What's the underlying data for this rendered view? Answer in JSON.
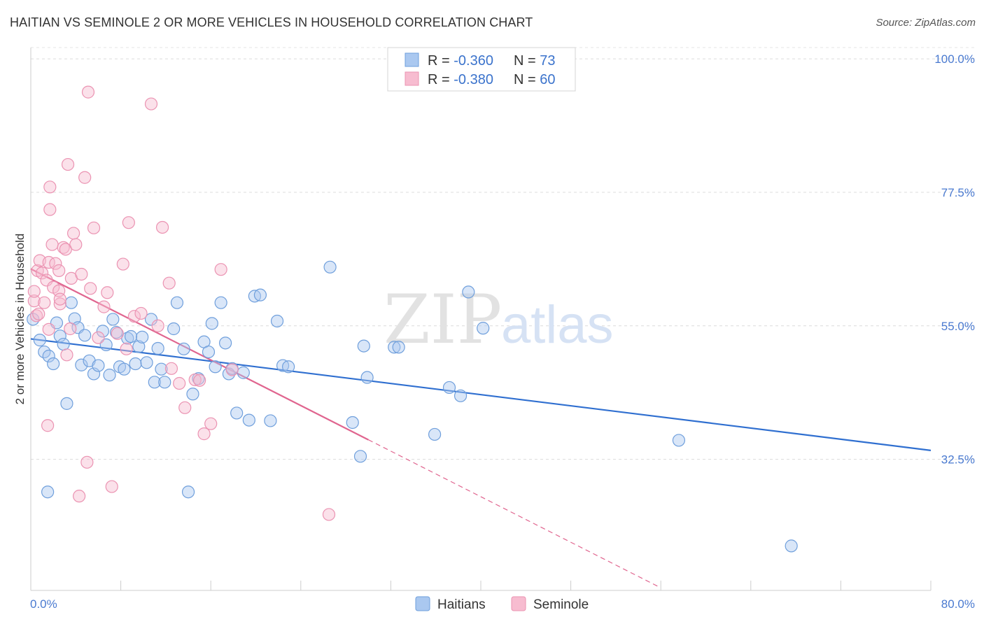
{
  "chart_data": {
    "type": "scatter",
    "title": "HAITIAN VS SEMINOLE 2 OR MORE VEHICLES IN HOUSEHOLD CORRELATION CHART",
    "source": "Source: ZipAtlas.com",
    "ylabel": "2 or more Vehicles in Household",
    "xlabel": "",
    "x_tick_labels": [
      "0.0%",
      "80.0%"
    ],
    "y_tick_labels": [
      "100.0%",
      "77.5%",
      "55.0%",
      "32.5%"
    ],
    "y_ticks": [
      100.0,
      77.5,
      55.0,
      32.5
    ],
    "xlim": [
      0,
      80
    ],
    "ylim": [
      10.4,
      101.9
    ],
    "watermark": {
      "zip": "ZIP",
      "atlas": "atlas"
    },
    "legend": [
      {
        "label": "R = ",
        "r": "-0.360",
        "n_label": "N = ",
        "n": "73"
      },
      {
        "label": "R = ",
        "r": "-0.380",
        "n_label": "N = ",
        "n": "60"
      }
    ],
    "series": [
      {
        "name": "Haitians",
        "color": "#aac8f0",
        "stroke": "#6f9fdc",
        "line_color": "#2f6fd0",
        "trend": {
          "x0": 0,
          "y0": 52.8,
          "x1": 80,
          "y1": 34.0
        },
        "points": [
          [
            0.2,
            56.1
          ],
          [
            0.8,
            52.6
          ],
          [
            1.2,
            50.6
          ],
          [
            1.6,
            49.9
          ],
          [
            2.0,
            48.6
          ],
          [
            2.3,
            55.5
          ],
          [
            2.6,
            53.3
          ],
          [
            2.9,
            51.9
          ],
          [
            3.2,
            41.9
          ],
          [
            3.6,
            58.9
          ],
          [
            3.9,
            56.2
          ],
          [
            4.2,
            54.7
          ],
          [
            4.5,
            48.4
          ],
          [
            4.8,
            53.4
          ],
          [
            5.2,
            49.1
          ],
          [
            5.6,
            46.9
          ],
          [
            6.0,
            48.3
          ],
          [
            6.4,
            54.1
          ],
          [
            6.7,
            51.8
          ],
          [
            7.0,
            46.7
          ],
          [
            7.3,
            56.1
          ],
          [
            7.6,
            53.9
          ],
          [
            7.9,
            48.1
          ],
          [
            8.3,
            47.7
          ],
          [
            8.6,
            52.9
          ],
          [
            8.9,
            53.2
          ],
          [
            9.3,
            48.6
          ],
          [
            9.6,
            51.5
          ],
          [
            9.9,
            53.1
          ],
          [
            10.3,
            48.8
          ],
          [
            10.7,
            56.1
          ],
          [
            11.0,
            45.5
          ],
          [
            11.3,
            51.2
          ],
          [
            11.6,
            47.7
          ],
          [
            11.9,
            45.5
          ],
          [
            12.7,
            54.5
          ],
          [
            13.0,
            58.9
          ],
          [
            13.6,
            51.1
          ],
          [
            14.0,
            27.0
          ],
          [
            14.4,
            43.5
          ],
          [
            14.9,
            46.1
          ],
          [
            15.4,
            52.3
          ],
          [
            15.8,
            50.6
          ],
          [
            16.1,
            55.4
          ],
          [
            16.4,
            48.1
          ],
          [
            16.9,
            58.9
          ],
          [
            17.3,
            52.1
          ],
          [
            17.6,
            46.9
          ],
          [
            17.9,
            47.8
          ],
          [
            18.3,
            40.3
          ],
          [
            18.9,
            47.1
          ],
          [
            19.4,
            39.1
          ],
          [
            19.9,
            60.0
          ],
          [
            20.4,
            60.2
          ],
          [
            21.3,
            39.0
          ],
          [
            21.9,
            55.8
          ],
          [
            22.4,
            48.3
          ],
          [
            22.9,
            48.1
          ],
          [
            26.6,
            64.9
          ],
          [
            28.6,
            38.7
          ],
          [
            29.3,
            33.0
          ],
          [
            29.6,
            51.6
          ],
          [
            29.9,
            46.3
          ],
          [
            32.3,
            51.4
          ],
          [
            32.7,
            51.4
          ],
          [
            35.9,
            36.7
          ],
          [
            37.2,
            44.6
          ],
          [
            38.2,
            43.2
          ],
          [
            38.9,
            60.7
          ],
          [
            40.2,
            54.6
          ],
          [
            57.6,
            35.7
          ],
          [
            67.6,
            17.9
          ],
          [
            1.5,
            27.0
          ]
        ]
      },
      {
        "name": "Seminole",
        "color": "#f7bcd0",
        "stroke": "#eb93b2",
        "line_color": "#e0658f",
        "trend": {
          "x0": 0,
          "y0": 64.6,
          "x1": 30.0,
          "y1": 35.8
        },
        "trend_dashed": {
          "x0": 30.0,
          "y0": 35.8,
          "x1": 80,
          "y1": -12.2
        },
        "points": [
          [
            0.3,
            59.2
          ],
          [
            0.3,
            60.8
          ],
          [
            0.5,
            56.7
          ],
          [
            0.6,
            64.3
          ],
          [
            0.7,
            57.0
          ],
          [
            0.8,
            66.0
          ],
          [
            1.0,
            63.9
          ],
          [
            1.2,
            58.9
          ],
          [
            1.4,
            62.7
          ],
          [
            1.5,
            38.2
          ],
          [
            1.6,
            65.7
          ],
          [
            1.6,
            54.4
          ],
          [
            1.7,
            78.4
          ],
          [
            1.7,
            74.6
          ],
          [
            1.9,
            68.7
          ],
          [
            2.0,
            61.5
          ],
          [
            2.2,
            65.5
          ],
          [
            2.5,
            60.9
          ],
          [
            2.5,
            64.3
          ],
          [
            2.6,
            58.7
          ],
          [
            2.6,
            59.5
          ],
          [
            2.9,
            68.2
          ],
          [
            3.1,
            67.9
          ],
          [
            3.2,
            50.1
          ],
          [
            3.3,
            82.2
          ],
          [
            3.5,
            54.5
          ],
          [
            3.6,
            63.0
          ],
          [
            3.8,
            70.6
          ],
          [
            4.0,
            68.7
          ],
          [
            4.3,
            26.3
          ],
          [
            4.5,
            63.7
          ],
          [
            4.8,
            80.0
          ],
          [
            5.0,
            32.0
          ],
          [
            5.3,
            61.3
          ],
          [
            5.6,
            71.5
          ],
          [
            6.0,
            53.0
          ],
          [
            6.5,
            58.2
          ],
          [
            6.8,
            60.6
          ],
          [
            7.2,
            27.9
          ],
          [
            7.7,
            53.7
          ],
          [
            8.2,
            65.4
          ],
          [
            8.5,
            51.1
          ],
          [
            8.7,
            72.4
          ],
          [
            9.2,
            56.6
          ],
          [
            9.8,
            57.1
          ],
          [
            10.7,
            92.4
          ],
          [
            11.3,
            55.0
          ],
          [
            11.7,
            71.6
          ],
          [
            12.3,
            62.2
          ],
          [
            12.5,
            47.8
          ],
          [
            13.2,
            45.3
          ],
          [
            13.7,
            41.2
          ],
          [
            14.6,
            45.9
          ],
          [
            15.0,
            45.8
          ],
          [
            15.4,
            36.8
          ],
          [
            16.0,
            38.5
          ],
          [
            16.9,
            64.5
          ],
          [
            17.9,
            47.6
          ],
          [
            26.5,
            23.2
          ],
          [
            5.1,
            94.4
          ]
        ]
      }
    ]
  }
}
